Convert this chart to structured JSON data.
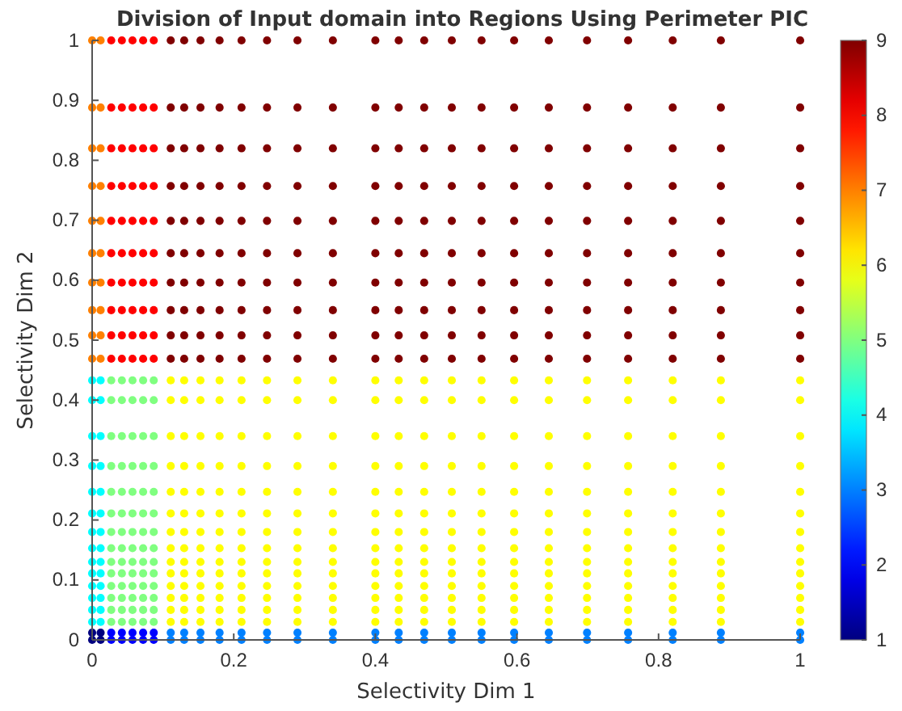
{
  "chart_data": {
    "type": "scatter",
    "title": "Division of Input domain into Regions Using Perimeter PIC",
    "xlabel": "Selectivity Dim 1",
    "ylabel": "Selectivity Dim 2",
    "marker": "circle",
    "xlim": [
      0,
      1
    ],
    "ylim": [
      0,
      1
    ],
    "xticks": [
      0,
      0.2,
      0.4,
      0.6,
      0.8,
      1
    ],
    "yticks": [
      0,
      0.1,
      0.2,
      0.3,
      0.4,
      0.5,
      0.6,
      0.7,
      0.8,
      0.9,
      1
    ],
    "clim": [
      1,
      9
    ],
    "cticks": [
      1,
      2,
      3,
      4,
      5,
      6,
      7,
      8,
      9
    ],
    "x": [
      0,
      0.012,
      0.027,
      0.042,
      0.057,
      0.072,
      0.087,
      0.111,
      0.13,
      0.153,
      0.18,
      0.211,
      0.247,
      0.29,
      0.34,
      0.4,
      0.433,
      0.469,
      0.508,
      0.55,
      0.596,
      0.645,
      0.699,
      0.757,
      0.82,
      0.888,
      1
    ],
    "series": [
      {
        "values": [
          0,
          0,
          0,
          0,
          0,
          0,
          0,
          0,
          0,
          0,
          0,
          0,
          0,
          0,
          0,
          0,
          0,
          0,
          0,
          0,
          0,
          0,
          0,
          0,
          0,
          0,
          0
        ],
        "colors": [
          "#000080",
          "#000080",
          "#0000ff",
          "#0000ff",
          "#0000ff",
          "#0000ff",
          "#0000ff",
          "#0080ff",
          "#0080ff",
          "#0080ff",
          "#0080ff",
          "#0080ff",
          "#0080ff",
          "#0080ff",
          "#0080ff",
          "#0080ff",
          "#0080ff",
          "#0080ff",
          "#0080ff",
          "#0080ff",
          "#0080ff",
          "#0080ff",
          "#0080ff",
          "#0080ff",
          "#0080ff",
          "#0080ff",
          "#0080ff"
        ]
      },
      {
        "values": [
          0.012,
          0.012,
          0.012,
          0.012,
          0.012,
          0.012,
          0.012,
          0.012,
          0.012,
          0.012,
          0.012,
          0.012,
          0.012,
          0.012,
          0.012,
          0.012,
          0.012,
          0.012,
          0.012,
          0.012,
          0.012,
          0.012,
          0.012,
          0.012,
          0.012,
          0.012,
          0.012
        ],
        "colors": [
          "#000080",
          "#000080",
          "#0000ff",
          "#0000ff",
          "#0000ff",
          "#0000ff",
          "#0000ff",
          "#0080ff",
          "#0080ff",
          "#0080ff",
          "#0080ff",
          "#0080ff",
          "#0080ff",
          "#0080ff",
          "#0080ff",
          "#0080ff",
          "#0080ff",
          "#0080ff",
          "#0080ff",
          "#0080ff",
          "#0080ff",
          "#0080ff",
          "#0080ff",
          "#0080ff",
          "#0080ff",
          "#0080ff",
          "#0080ff"
        ]
      },
      {
        "values": [
          0.03,
          0.03,
          0.03,
          0.03,
          0.03,
          0.03,
          0.03,
          0.03,
          0.03,
          0.03,
          0.03,
          0.03,
          0.03,
          0.03,
          0.03,
          0.03,
          0.03,
          0.03,
          0.03,
          0.03,
          0.03,
          0.03,
          0.03,
          0.03,
          0.03,
          0.03,
          0.03
        ],
        "colors": [
          "#00ffff",
          "#00ffff",
          "#80ff80",
          "#80ff80",
          "#80ff80",
          "#80ff80",
          "#80ff80",
          "#ffff00",
          "#ffff00",
          "#ffff00",
          "#ffff00",
          "#ffff00",
          "#ffff00",
          "#ffff00",
          "#ffff00",
          "#ffff00",
          "#ffff00",
          "#ffff00",
          "#ffff00",
          "#ffff00",
          "#ffff00",
          "#ffff00",
          "#ffff00",
          "#ffff00",
          "#ffff00",
          "#ffff00",
          "#ffff00"
        ]
      },
      {
        "values": [
          0.05,
          0.05,
          0.05,
          0.05,
          0.05,
          0.05,
          0.05,
          0.05,
          0.05,
          0.05,
          0.05,
          0.05,
          0.05,
          0.05,
          0.05,
          0.05,
          0.05,
          0.05,
          0.05,
          0.05,
          0.05,
          0.05,
          0.05,
          0.05,
          0.05,
          0.05,
          0.05
        ],
        "colors": [
          "#00ffff",
          "#00ffff",
          "#80ff80",
          "#80ff80",
          "#80ff80",
          "#80ff80",
          "#80ff80",
          "#ffff00",
          "#ffff00",
          "#ffff00",
          "#ffff00",
          "#ffff00",
          "#ffff00",
          "#ffff00",
          "#ffff00",
          "#ffff00",
          "#ffff00",
          "#ffff00",
          "#ffff00",
          "#ffff00",
          "#ffff00",
          "#ffff00",
          "#ffff00",
          "#ffff00",
          "#ffff00",
          "#ffff00",
          "#ffff00"
        ]
      },
      {
        "values": [
          0.07,
          0.07,
          0.07,
          0.07,
          0.07,
          0.07,
          0.07,
          0.07,
          0.07,
          0.07,
          0.07,
          0.07,
          0.07,
          0.07,
          0.07,
          0.07,
          0.07,
          0.07,
          0.07,
          0.07,
          0.07,
          0.07,
          0.07,
          0.07,
          0.07,
          0.07,
          0.07
        ],
        "colors": [
          "#00ffff",
          "#00ffff",
          "#80ff80",
          "#80ff80",
          "#80ff80",
          "#80ff80",
          "#80ff80",
          "#ffff00",
          "#ffff00",
          "#ffff00",
          "#ffff00",
          "#ffff00",
          "#ffff00",
          "#ffff00",
          "#ffff00",
          "#ffff00",
          "#ffff00",
          "#ffff00",
          "#ffff00",
          "#ffff00",
          "#ffff00",
          "#ffff00",
          "#ffff00",
          "#ffff00",
          "#ffff00",
          "#ffff00",
          "#ffff00"
        ]
      },
      {
        "values": [
          0.09,
          0.09,
          0.09,
          0.09,
          0.09,
          0.09,
          0.09,
          0.09,
          0.09,
          0.09,
          0.09,
          0.09,
          0.09,
          0.09,
          0.09,
          0.09,
          0.09,
          0.09,
          0.09,
          0.09,
          0.09,
          0.09,
          0.09,
          0.09,
          0.09,
          0.09,
          0.09
        ],
        "colors": [
          "#00ffff",
          "#00ffff",
          "#80ff80",
          "#80ff80",
          "#80ff80",
          "#80ff80",
          "#80ff80",
          "#ffff00",
          "#ffff00",
          "#ffff00",
          "#ffff00",
          "#ffff00",
          "#ffff00",
          "#ffff00",
          "#ffff00",
          "#ffff00",
          "#ffff00",
          "#ffff00",
          "#ffff00",
          "#ffff00",
          "#ffff00",
          "#ffff00",
          "#ffff00",
          "#ffff00",
          "#ffff00",
          "#ffff00",
          "#ffff00"
        ]
      },
      {
        "values": [
          0.111,
          0.111,
          0.111,
          0.111,
          0.111,
          0.111,
          0.111,
          0.111,
          0.111,
          0.111,
          0.111,
          0.111,
          0.111,
          0.111,
          0.111,
          0.111,
          0.111,
          0.111,
          0.111,
          0.111,
          0.111,
          0.111,
          0.111,
          0.111,
          0.111,
          0.111,
          0.111
        ],
        "colors": [
          "#00ffff",
          "#00ffff",
          "#80ff80",
          "#80ff80",
          "#80ff80",
          "#80ff80",
          "#80ff80",
          "#ffff00",
          "#ffff00",
          "#ffff00",
          "#ffff00",
          "#ffff00",
          "#ffff00",
          "#ffff00",
          "#ffff00",
          "#ffff00",
          "#ffff00",
          "#ffff00",
          "#ffff00",
          "#ffff00",
          "#ffff00",
          "#ffff00",
          "#ffff00",
          "#ffff00",
          "#ffff00",
          "#ffff00",
          "#ffff00"
        ]
      },
      {
        "values": [
          0.13,
          0.13,
          0.13,
          0.13,
          0.13,
          0.13,
          0.13,
          0.13,
          0.13,
          0.13,
          0.13,
          0.13,
          0.13,
          0.13,
          0.13,
          0.13,
          0.13,
          0.13,
          0.13,
          0.13,
          0.13,
          0.13,
          0.13,
          0.13,
          0.13,
          0.13,
          0.13
        ],
        "colors": [
          "#00ffff",
          "#00ffff",
          "#80ff80",
          "#80ff80",
          "#80ff80",
          "#80ff80",
          "#80ff80",
          "#ffff00",
          "#ffff00",
          "#ffff00",
          "#ffff00",
          "#ffff00",
          "#ffff00",
          "#ffff00",
          "#ffff00",
          "#ffff00",
          "#ffff00",
          "#ffff00",
          "#ffff00",
          "#ffff00",
          "#ffff00",
          "#ffff00",
          "#ffff00",
          "#ffff00",
          "#ffff00",
          "#ffff00",
          "#ffff00"
        ]
      },
      {
        "values": [
          0.153,
          0.153,
          0.153,
          0.153,
          0.153,
          0.153,
          0.153,
          0.153,
          0.153,
          0.153,
          0.153,
          0.153,
          0.153,
          0.153,
          0.153,
          0.153,
          0.153,
          0.153,
          0.153,
          0.153,
          0.153,
          0.153,
          0.153,
          0.153,
          0.153,
          0.153,
          0.153
        ],
        "colors": [
          "#00ffff",
          "#00ffff",
          "#80ff80",
          "#80ff80",
          "#80ff80",
          "#80ff80",
          "#80ff80",
          "#ffff00",
          "#ffff00",
          "#ffff00",
          "#ffff00",
          "#ffff00",
          "#ffff00",
          "#ffff00",
          "#ffff00",
          "#ffff00",
          "#ffff00",
          "#ffff00",
          "#ffff00",
          "#ffff00",
          "#ffff00",
          "#ffff00",
          "#ffff00",
          "#ffff00",
          "#ffff00",
          "#ffff00",
          "#ffff00"
        ]
      },
      {
        "values": [
          0.18,
          0.18,
          0.18,
          0.18,
          0.18,
          0.18,
          0.18,
          0.18,
          0.18,
          0.18,
          0.18,
          0.18,
          0.18,
          0.18,
          0.18,
          0.18,
          0.18,
          0.18,
          0.18,
          0.18,
          0.18,
          0.18,
          0.18,
          0.18,
          0.18,
          0.18,
          0.18
        ],
        "colors": [
          "#00ffff",
          "#00ffff",
          "#80ff80",
          "#80ff80",
          "#80ff80",
          "#80ff80",
          "#80ff80",
          "#ffff00",
          "#ffff00",
          "#ffff00",
          "#ffff00",
          "#ffff00",
          "#ffff00",
          "#ffff00",
          "#ffff00",
          "#ffff00",
          "#ffff00",
          "#ffff00",
          "#ffff00",
          "#ffff00",
          "#ffff00",
          "#ffff00",
          "#ffff00",
          "#ffff00",
          "#ffff00",
          "#ffff00",
          "#ffff00"
        ]
      },
      {
        "values": [
          0.211,
          0.211,
          0.211,
          0.211,
          0.211,
          0.211,
          0.211,
          0.211,
          0.211,
          0.211,
          0.211,
          0.211,
          0.211,
          0.211,
          0.211,
          0.211,
          0.211,
          0.211,
          0.211,
          0.211,
          0.211,
          0.211,
          0.211,
          0.211,
          0.211,
          0.211,
          0.211
        ],
        "colors": [
          "#00ffff",
          "#00ffff",
          "#80ff80",
          "#80ff80",
          "#80ff80",
          "#80ff80",
          "#80ff80",
          "#ffff00",
          "#ffff00",
          "#ffff00",
          "#ffff00",
          "#ffff00",
          "#ffff00",
          "#ffff00",
          "#ffff00",
          "#ffff00",
          "#ffff00",
          "#ffff00",
          "#ffff00",
          "#ffff00",
          "#ffff00",
          "#ffff00",
          "#ffff00",
          "#ffff00",
          "#ffff00",
          "#ffff00",
          "#ffff00"
        ]
      },
      {
        "values": [
          0.247,
          0.247,
          0.247,
          0.247,
          0.247,
          0.247,
          0.247,
          0.247,
          0.247,
          0.247,
          0.247,
          0.247,
          0.247,
          0.247,
          0.247,
          0.247,
          0.247,
          0.247,
          0.247,
          0.247,
          0.247,
          0.247,
          0.247,
          0.247,
          0.247,
          0.247,
          0.247
        ],
        "colors": [
          "#00ffff",
          "#00ffff",
          "#80ff80",
          "#80ff80",
          "#80ff80",
          "#80ff80",
          "#80ff80",
          "#ffff00",
          "#ffff00",
          "#ffff00",
          "#ffff00",
          "#ffff00",
          "#ffff00",
          "#ffff00",
          "#ffff00",
          "#ffff00",
          "#ffff00",
          "#ffff00",
          "#ffff00",
          "#ffff00",
          "#ffff00",
          "#ffff00",
          "#ffff00",
          "#ffff00",
          "#ffff00",
          "#ffff00",
          "#ffff00"
        ]
      },
      {
        "values": [
          0.29,
          0.29,
          0.29,
          0.29,
          0.29,
          0.29,
          0.29,
          0.29,
          0.29,
          0.29,
          0.29,
          0.29,
          0.29,
          0.29,
          0.29,
          0.29,
          0.29,
          0.29,
          0.29,
          0.29,
          0.29,
          0.29,
          0.29,
          0.29,
          0.29,
          0.29,
          0.29
        ],
        "colors": [
          "#00ffff",
          "#00ffff",
          "#80ff80",
          "#80ff80",
          "#80ff80",
          "#80ff80",
          "#80ff80",
          "#ffff00",
          "#ffff00",
          "#ffff00",
          "#ffff00",
          "#ffff00",
          "#ffff00",
          "#ffff00",
          "#ffff00",
          "#ffff00",
          "#ffff00",
          "#ffff00",
          "#ffff00",
          "#ffff00",
          "#ffff00",
          "#ffff00",
          "#ffff00",
          "#ffff00",
          "#ffff00",
          "#ffff00",
          "#ffff00"
        ]
      },
      {
        "values": [
          0.34,
          0.34,
          0.34,
          0.34,
          0.34,
          0.34,
          0.34,
          0.34,
          0.34,
          0.34,
          0.34,
          0.34,
          0.34,
          0.34,
          0.34,
          0.34,
          0.34,
          0.34,
          0.34,
          0.34,
          0.34,
          0.34,
          0.34,
          0.34,
          0.34,
          0.34,
          0.34
        ],
        "colors": [
          "#00ffff",
          "#00ffff",
          "#80ff80",
          "#80ff80",
          "#80ff80",
          "#80ff80",
          "#80ff80",
          "#ffff00",
          "#ffff00",
          "#ffff00",
          "#ffff00",
          "#ffff00",
          "#ffff00",
          "#ffff00",
          "#ffff00",
          "#ffff00",
          "#ffff00",
          "#ffff00",
          "#ffff00",
          "#ffff00",
          "#ffff00",
          "#ffff00",
          "#ffff00",
          "#ffff00",
          "#ffff00",
          "#ffff00",
          "#ffff00"
        ]
      },
      {
        "values": [
          0.4,
          0.4,
          0.4,
          0.4,
          0.4,
          0.4,
          0.4,
          0.4,
          0.4,
          0.4,
          0.4,
          0.4,
          0.4,
          0.4,
          0.4,
          0.4,
          0.4,
          0.4,
          0.4,
          0.4,
          0.4,
          0.4,
          0.4,
          0.4,
          0.4,
          0.4,
          0.4
        ],
        "colors": [
          "#00ffff",
          "#00ffff",
          "#80ff80",
          "#80ff80",
          "#80ff80",
          "#80ff80",
          "#80ff80",
          "#ffff00",
          "#ffff00",
          "#ffff00",
          "#ffff00",
          "#ffff00",
          "#ffff00",
          "#ffff00",
          "#ffff00",
          "#ffff00",
          "#ffff00",
          "#ffff00",
          "#ffff00",
          "#ffff00",
          "#ffff00",
          "#ffff00",
          "#ffff00",
          "#ffff00",
          "#ffff00",
          "#ffff00",
          "#ffff00"
        ]
      },
      {
        "values": [
          0.433,
          0.433,
          0.433,
          0.433,
          0.433,
          0.433,
          0.433,
          0.433,
          0.433,
          0.433,
          0.433,
          0.433,
          0.433,
          0.433,
          0.433,
          0.433,
          0.433,
          0.433,
          0.433,
          0.433,
          0.433,
          0.433,
          0.433,
          0.433,
          0.433,
          0.433,
          0.433
        ],
        "colors": [
          "#00ffff",
          "#00ffff",
          "#80ff80",
          "#80ff80",
          "#80ff80",
          "#80ff80",
          "#80ff80",
          "#ffff00",
          "#ffff00",
          "#ffff00",
          "#ffff00",
          "#ffff00",
          "#ffff00",
          "#ffff00",
          "#ffff00",
          "#ffff00",
          "#ffff00",
          "#ffff00",
          "#ffff00",
          "#ffff00",
          "#ffff00",
          "#ffff00",
          "#ffff00",
          "#ffff00",
          "#ffff00",
          "#ffff00",
          "#ffff00"
        ]
      },
      {
        "values": [
          0.469,
          0.469,
          0.469,
          0.469,
          0.469,
          0.469,
          0.469,
          0.469,
          0.469,
          0.469,
          0.469,
          0.469,
          0.469,
          0.469,
          0.469,
          0.469,
          0.469,
          0.469,
          0.469,
          0.469,
          0.469,
          0.469,
          0.469,
          0.469,
          0.469,
          0.469,
          0.469
        ],
        "colors": [
          "#ff8000",
          "#ff8000",
          "#ff0000",
          "#ff0000",
          "#ff0000",
          "#ff0000",
          "#ff0000",
          "#800000",
          "#800000",
          "#800000",
          "#800000",
          "#800000",
          "#800000",
          "#800000",
          "#800000",
          "#800000",
          "#800000",
          "#800000",
          "#800000",
          "#800000",
          "#800000",
          "#800000",
          "#800000",
          "#800000",
          "#800000",
          "#800000",
          "#800000"
        ]
      },
      {
        "values": [
          0.508,
          0.508,
          0.508,
          0.508,
          0.508,
          0.508,
          0.508,
          0.508,
          0.508,
          0.508,
          0.508,
          0.508,
          0.508,
          0.508,
          0.508,
          0.508,
          0.508,
          0.508,
          0.508,
          0.508,
          0.508,
          0.508,
          0.508,
          0.508,
          0.508,
          0.508,
          0.508
        ],
        "colors": [
          "#ff8000",
          "#ff8000",
          "#ff0000",
          "#ff0000",
          "#ff0000",
          "#ff0000",
          "#ff0000",
          "#800000",
          "#800000",
          "#800000",
          "#800000",
          "#800000",
          "#800000",
          "#800000",
          "#800000",
          "#800000",
          "#800000",
          "#800000",
          "#800000",
          "#800000",
          "#800000",
          "#800000",
          "#800000",
          "#800000",
          "#800000",
          "#800000",
          "#800000"
        ]
      },
      {
        "values": [
          0.55,
          0.55,
          0.55,
          0.55,
          0.55,
          0.55,
          0.55,
          0.55,
          0.55,
          0.55,
          0.55,
          0.55,
          0.55,
          0.55,
          0.55,
          0.55,
          0.55,
          0.55,
          0.55,
          0.55,
          0.55,
          0.55,
          0.55,
          0.55,
          0.55,
          0.55,
          0.55
        ],
        "colors": [
          "#ff8000",
          "#ff8000",
          "#ff0000",
          "#ff0000",
          "#ff0000",
          "#ff0000",
          "#ff0000",
          "#800000",
          "#800000",
          "#800000",
          "#800000",
          "#800000",
          "#800000",
          "#800000",
          "#800000",
          "#800000",
          "#800000",
          "#800000",
          "#800000",
          "#800000",
          "#800000",
          "#800000",
          "#800000",
          "#800000",
          "#800000",
          "#800000",
          "#800000"
        ]
      },
      {
        "values": [
          0.596,
          0.596,
          0.596,
          0.596,
          0.596,
          0.596,
          0.596,
          0.596,
          0.596,
          0.596,
          0.596,
          0.596,
          0.596,
          0.596,
          0.596,
          0.596,
          0.596,
          0.596,
          0.596,
          0.596,
          0.596,
          0.596,
          0.596,
          0.596,
          0.596,
          0.596,
          0.596
        ],
        "colors": [
          "#ff8000",
          "#ff8000",
          "#ff0000",
          "#ff0000",
          "#ff0000",
          "#ff0000",
          "#ff0000",
          "#800000",
          "#800000",
          "#800000",
          "#800000",
          "#800000",
          "#800000",
          "#800000",
          "#800000",
          "#800000",
          "#800000",
          "#800000",
          "#800000",
          "#800000",
          "#800000",
          "#800000",
          "#800000",
          "#800000",
          "#800000",
          "#800000",
          "#800000"
        ]
      },
      {
        "values": [
          0.645,
          0.645,
          0.645,
          0.645,
          0.645,
          0.645,
          0.645,
          0.645,
          0.645,
          0.645,
          0.645,
          0.645,
          0.645,
          0.645,
          0.645,
          0.645,
          0.645,
          0.645,
          0.645,
          0.645,
          0.645,
          0.645,
          0.645,
          0.645,
          0.645,
          0.645,
          0.645
        ],
        "colors": [
          "#ff8000",
          "#ff8000",
          "#ff0000",
          "#ff0000",
          "#ff0000",
          "#ff0000",
          "#ff0000",
          "#800000",
          "#800000",
          "#800000",
          "#800000",
          "#800000",
          "#800000",
          "#800000",
          "#800000",
          "#800000",
          "#800000",
          "#800000",
          "#800000",
          "#800000",
          "#800000",
          "#800000",
          "#800000",
          "#800000",
          "#800000",
          "#800000",
          "#800000"
        ]
      },
      {
        "values": [
          0.699,
          0.699,
          0.699,
          0.699,
          0.699,
          0.699,
          0.699,
          0.699,
          0.699,
          0.699,
          0.699,
          0.699,
          0.699,
          0.699,
          0.699,
          0.699,
          0.699,
          0.699,
          0.699,
          0.699,
          0.699,
          0.699,
          0.699,
          0.699,
          0.699,
          0.699,
          0.699
        ],
        "colors": [
          "#ff8000",
          "#ff8000",
          "#ff0000",
          "#ff0000",
          "#ff0000",
          "#ff0000",
          "#ff0000",
          "#800000",
          "#800000",
          "#800000",
          "#800000",
          "#800000",
          "#800000",
          "#800000",
          "#800000",
          "#800000",
          "#800000",
          "#800000",
          "#800000",
          "#800000",
          "#800000",
          "#800000",
          "#800000",
          "#800000",
          "#800000",
          "#800000",
          "#800000"
        ]
      },
      {
        "values": [
          0.757,
          0.757,
          0.757,
          0.757,
          0.757,
          0.757,
          0.757,
          0.757,
          0.757,
          0.757,
          0.757,
          0.757,
          0.757,
          0.757,
          0.757,
          0.757,
          0.757,
          0.757,
          0.757,
          0.757,
          0.757,
          0.757,
          0.757,
          0.757,
          0.757,
          0.757,
          0.757
        ],
        "colors": [
          "#ff8000",
          "#ff8000",
          "#ff0000",
          "#ff0000",
          "#ff0000",
          "#ff0000",
          "#ff0000",
          "#800000",
          "#800000",
          "#800000",
          "#800000",
          "#800000",
          "#800000",
          "#800000",
          "#800000",
          "#800000",
          "#800000",
          "#800000",
          "#800000",
          "#800000",
          "#800000",
          "#800000",
          "#800000",
          "#800000",
          "#800000",
          "#800000",
          "#800000"
        ]
      },
      {
        "values": [
          0.82,
          0.82,
          0.82,
          0.82,
          0.82,
          0.82,
          0.82,
          0.82,
          0.82,
          0.82,
          0.82,
          0.82,
          0.82,
          0.82,
          0.82,
          0.82,
          0.82,
          0.82,
          0.82,
          0.82,
          0.82,
          0.82,
          0.82,
          0.82,
          0.82,
          0.82,
          0.82
        ],
        "colors": [
          "#ff8000",
          "#ff8000",
          "#ff0000",
          "#ff0000",
          "#ff0000",
          "#ff0000",
          "#ff0000",
          "#800000",
          "#800000",
          "#800000",
          "#800000",
          "#800000",
          "#800000",
          "#800000",
          "#800000",
          "#800000",
          "#800000",
          "#800000",
          "#800000",
          "#800000",
          "#800000",
          "#800000",
          "#800000",
          "#800000",
          "#800000",
          "#800000",
          "#800000"
        ]
      },
      {
        "values": [
          0.888,
          0.888,
          0.888,
          0.888,
          0.888,
          0.888,
          0.888,
          0.888,
          0.888,
          0.888,
          0.888,
          0.888,
          0.888,
          0.888,
          0.888,
          0.888,
          0.888,
          0.888,
          0.888,
          0.888,
          0.888,
          0.888,
          0.888,
          0.888,
          0.888,
          0.888,
          0.888
        ],
        "colors": [
          "#ff8000",
          "#ff8000",
          "#ff0000",
          "#ff0000",
          "#ff0000",
          "#ff0000",
          "#ff0000",
          "#800000",
          "#800000",
          "#800000",
          "#800000",
          "#800000",
          "#800000",
          "#800000",
          "#800000",
          "#800000",
          "#800000",
          "#800000",
          "#800000",
          "#800000",
          "#800000",
          "#800000",
          "#800000",
          "#800000",
          "#800000",
          "#800000",
          "#800000"
        ]
      },
      {
        "values": [
          1,
          1,
          1,
          1,
          1,
          1,
          1,
          1,
          1,
          1,
          1,
          1,
          1,
          1,
          1,
          1,
          1,
          1,
          1,
          1,
          1,
          1,
          1,
          1,
          1,
          1,
          1
        ],
        "colors": [
          "#ff8000",
          "#ff8000",
          "#ff0000",
          "#ff0000",
          "#ff0000",
          "#ff0000",
          "#ff0000",
          "#800000",
          "#800000",
          "#800000",
          "#800000",
          "#800000",
          "#800000",
          "#800000",
          "#800000",
          "#800000",
          "#800000",
          "#800000",
          "#800000",
          "#800000",
          "#800000",
          "#800000",
          "#800000",
          "#800000",
          "#800000",
          "#800000",
          "#800000"
        ]
      }
    ]
  }
}
